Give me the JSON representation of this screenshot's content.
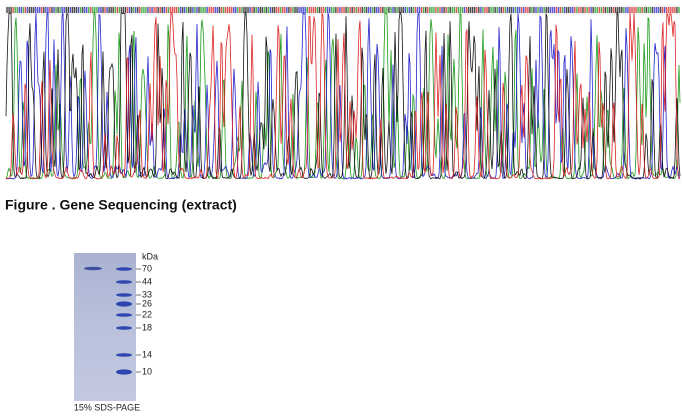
{
  "caption": "Figure . Gene Sequencing (extract)",
  "gel": {
    "unit": "kDa",
    "markers": [
      70,
      44,
      33,
      26,
      22,
      18,
      14,
      10
    ],
    "footer": "15% SDS-PAGE"
  }
}
